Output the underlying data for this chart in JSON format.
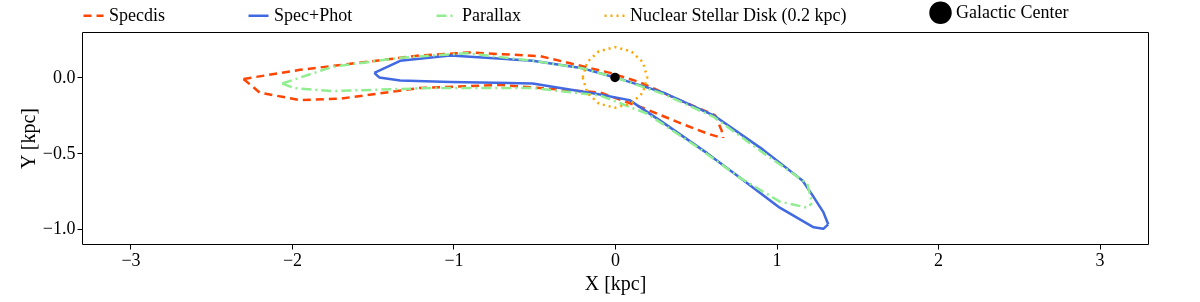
{
  "chart_data": {
    "type": "line",
    "xlabel": "X [kpc]",
    "ylabel": "Y [kpc]",
    "xlim": [
      -3.3,
      3.3
    ],
    "ylim": [
      -1.1,
      0.3
    ],
    "xticks": [
      {
        "value": -3,
        "label": "−3"
      },
      {
        "value": -2,
        "label": "−2"
      },
      {
        "value": -1,
        "label": "−1"
      },
      0,
      1,
      2,
      3
    ],
    "yticks": [
      {
        "value": -1,
        "label": "−1.0"
      },
      {
        "value": -0.5,
        "label": "−0.5"
      },
      {
        "value": 0,
        "label": "0.0"
      }
    ],
    "grid": false,
    "legend": "top",
    "marker": "none",
    "series": [
      {
        "name": "Specdis",
        "color": "#ff4500",
        "line_style": "dashed",
        "x": [
          -2.3,
          -1.95,
          -1.21,
          -0.9,
          -0.46,
          -0.03,
          0.15,
          0.4,
          0.62,
          0.66,
          0.67
        ],
        "values": [
          -0.01,
          0.05,
          0.145,
          0.165,
          0.14,
          0.03,
          -0.03,
          -0.15,
          -0.25,
          -0.35,
          -0.4
        ]
      },
      {
        "color": "#ff4500",
        "line_style": "dashed",
        "x": [
          -2.3,
          -2.2,
          -1.95,
          -1.7,
          -1.21,
          -0.71,
          -0.09,
          0.17,
          0.4,
          0.57,
          0.65
        ],
        "values": [
          -0.01,
          -0.1,
          -0.15,
          -0.14,
          -0.07,
          -0.05,
          -0.1,
          -0.2,
          -0.3,
          -0.37,
          -0.395
        ]
      },
      {
        "name": "Spec+Phot",
        "color": "#4169e1",
        "line_style": "solid",
        "x": [
          -1.49,
          -1.33,
          -1.02,
          -0.51,
          -0.2,
          0,
          0.3,
          0.61,
          0.92,
          1.16,
          1.23,
          1.29,
          1.32
        ],
        "values": [
          0.03,
          0.11,
          0.145,
          0.11,
          0.06,
          0,
          -0.1,
          -0.25,
          -0.48,
          -0.68,
          -0.79,
          -0.89,
          -0.97
        ]
      },
      {
        "color": "#4169e1",
        "line_style": "solid",
        "x": [
          -1.49,
          -1.46,
          -1.33,
          -1.02,
          -0.51,
          -0.11,
          0.09,
          0.3,
          0.57,
          0.77,
          1.02,
          1.23,
          1.29,
          1.32
        ],
        "values": [
          0.03,
          0,
          -0.02,
          -0.03,
          -0.04,
          -0.11,
          -0.15,
          -0.3,
          -0.5,
          -0.66,
          -0.86,
          -0.99,
          -1.0,
          -0.97
        ]
      },
      {
        "name": "Parallax",
        "color": "#90ee90",
        "line_style": "dashdot",
        "x": [
          -2.06,
          -1.75,
          -1.33,
          -0.92,
          -0.51,
          -0.2,
          0,
          0.3,
          0.61,
          0.92,
          1.19,
          1.22
        ],
        "values": [
          -0.04,
          0.07,
          0.13,
          0.16,
          0.11,
          0.06,
          0,
          -0.11,
          -0.26,
          -0.5,
          -0.7,
          -0.83
        ]
      },
      {
        "color": "#90ee90",
        "line_style": "dashdot",
        "x": [
          -2.06,
          -1.99,
          -1.75,
          -1.13,
          -0.51,
          -0.09,
          0.2,
          0.51,
          0.77,
          1.02,
          1.19,
          1.22
        ],
        "values": [
          -0.04,
          -0.07,
          -0.09,
          -0.07,
          -0.07,
          -0.12,
          -0.24,
          -0.46,
          -0.66,
          -0.82,
          -0.86,
          -0.83
        ]
      },
      {
        "name": "Nuclear Stellar Disk (0.2 kpc)",
        "color": "#ffa500",
        "line_style": "dotted",
        "x": [
          -0.2,
          -0.173,
          -0.1,
          0,
          0.1,
          0.173,
          0.2
        ],
        "values": [
          0,
          0.1,
          0.173,
          0.2,
          0.173,
          0.1,
          0
        ]
      },
      {
        "color": "#ffa500",
        "line_style": "dotted",
        "x": [
          -0.2,
          -0.173,
          -0.1,
          0,
          0.1,
          0.173,
          0.2
        ],
        "values": [
          0,
          -0.1,
          -0.173,
          -0.2,
          -0.173,
          -0.1,
          0
        ]
      },
      {
        "name": "Galactic Center",
        "color": "#000000",
        "type": "scatter",
        "marker": "circle",
        "x": [
          0
        ],
        "values": [
          0
        ]
      }
    ]
  }
}
